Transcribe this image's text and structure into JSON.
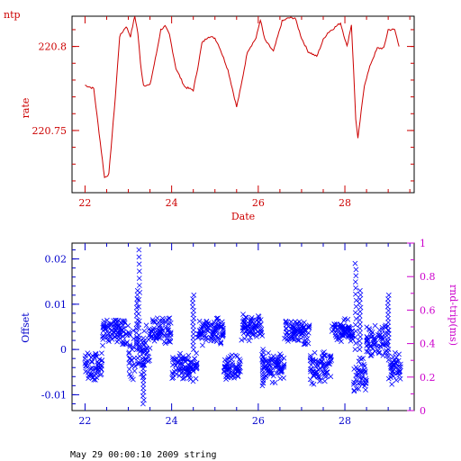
{
  "corner_label": "ntp",
  "footer_text": "May 29 00:00:10 2009 string",
  "colors": {
    "top": "#cc0000",
    "offset": "#0000cc",
    "rtt": "#cc00cc",
    "frame": "#000000"
  },
  "chart_data": [
    {
      "type": "line",
      "xlabel": "Date",
      "ylabel": "rate",
      "xlim": [
        21.7,
        29.6
      ],
      "ylim": [
        220.713,
        220.818
      ],
      "x_ticks": [
        22,
        24,
        26,
        28
      ],
      "y_ticks": [
        220.75,
        220.8
      ],
      "x_ticks_minor": [
        22.5,
        23,
        23.5,
        24.5,
        25,
        25.5,
        26.5,
        27,
        27.5,
        28.5,
        29,
        29.5
      ],
      "y_tick_labels": [
        "220.75",
        "220.8"
      ],
      "x_tick_labels": [
        "22",
        "24",
        "26",
        "28"
      ],
      "grid": false,
      "series": [
        {
          "x": [
            22.0,
            22.2,
            22.45,
            22.55,
            22.7,
            22.8,
            22.95,
            23.05,
            23.15,
            23.22,
            23.28,
            23.35,
            23.5,
            23.65,
            23.75,
            23.85,
            23.95,
            24.1,
            24.3,
            24.5,
            24.6,
            24.7,
            24.85,
            25.0,
            25.1,
            25.3,
            25.5,
            25.6,
            25.75,
            25.95,
            26.05,
            26.15,
            26.35,
            26.55,
            26.7,
            26.85,
            27.0,
            27.15,
            27.35,
            27.5,
            27.6,
            27.75,
            27.9,
            28.05,
            28.15,
            28.2,
            28.25,
            28.3,
            28.45,
            28.6,
            28.75,
            28.9,
            29.0,
            29.15,
            29.25
          ],
          "y": [
            220.777,
            220.775,
            220.722,
            220.724,
            220.77,
            220.806,
            220.812,
            220.806,
            220.818,
            220.808,
            220.79,
            220.777,
            220.777,
            220.796,
            220.81,
            220.812,
            220.807,
            220.787,
            220.776,
            220.774,
            220.787,
            220.802,
            220.806,
            220.805,
            220.8,
            220.786,
            220.764,
            220.776,
            220.797,
            220.805,
            220.816,
            220.804,
            220.797,
            220.815,
            220.817,
            220.817,
            220.805,
            220.797,
            220.794,
            220.804,
            220.808,
            220.811,
            220.814,
            220.8,
            220.813,
            220.786,
            220.757,
            220.745,
            220.777,
            220.79,
            220.799,
            220.799,
            220.81,
            220.81,
            220.8
          ]
        }
      ]
    },
    {
      "type": "scatter",
      "xlabel": "",
      "ylabel": "Offset",
      "ylabel_right": "rnd-trip(ms)",
      "xlim": [
        21.7,
        29.6
      ],
      "ylim": [
        -0.0135,
        0.0235
      ],
      "ylim_right": [
        0,
        1
      ],
      "x_ticks": [
        22,
        24,
        26,
        28
      ],
      "x_tick_labels": [
        "22",
        "24",
        "26",
        "28"
      ],
      "y_ticks": [
        -0.01,
        0,
        0.01,
        0.02
      ],
      "y_tick_labels": [
        "-0.01",
        "0",
        "0.01",
        "0.02"
      ],
      "y_ticks_right": [
        0,
        0.2,
        0.4,
        0.6,
        0.8,
        1
      ],
      "y_tick_labels_right": [
        "0",
        "0.2",
        "0.4",
        "0.6",
        "0.8",
        "1"
      ],
      "grid": false,
      "marker": "x",
      "segments": [
        {
          "x_start": 22.0,
          "x_end": 22.4,
          "center": -0.004,
          "spread": 0.005
        },
        {
          "x_start": 22.4,
          "x_end": 23.0,
          "center": 0.004,
          "spread": 0.004
        },
        {
          "x_start": 23.0,
          "x_end": 23.5,
          "center": -0.001,
          "spread": 0.009
        },
        {
          "x_start": 23.5,
          "x_end": 24.0,
          "center": 0.004,
          "spread": 0.004
        },
        {
          "x_start": 24.0,
          "x_end": 24.6,
          "center": -0.004,
          "spread": 0.005
        },
        {
          "x_start": 24.6,
          "x_end": 25.2,
          "center": 0.004,
          "spread": 0.004
        },
        {
          "x_start": 25.2,
          "x_end": 25.6,
          "center": -0.004,
          "spread": 0.004
        },
        {
          "x_start": 25.6,
          "x_end": 26.1,
          "center": 0.005,
          "spread": 0.004
        },
        {
          "x_start": 26.1,
          "x_end": 26.6,
          "center": -0.004,
          "spread": 0.005
        },
        {
          "x_start": 26.6,
          "x_end": 27.2,
          "center": 0.004,
          "spread": 0.004
        },
        {
          "x_start": 27.2,
          "x_end": 27.7,
          "center": -0.004,
          "spread": 0.005
        },
        {
          "x_start": 27.7,
          "x_end": 28.2,
          "center": 0.004,
          "spread": 0.004
        },
        {
          "x_start": 28.2,
          "x_end": 28.5,
          "center": -0.006,
          "spread": 0.006
        },
        {
          "x_start": 28.5,
          "x_end": 29.0,
          "center": 0.002,
          "spread": 0.005
        },
        {
          "x_start": 29.0,
          "x_end": 29.3,
          "center": -0.004,
          "spread": 0.005
        }
      ],
      "spikes": [
        {
          "x": 23.25,
          "y": 0.022
        },
        {
          "x": 23.2,
          "y": 0.013
        },
        {
          "x": 24.5,
          "y": 0.012
        },
        {
          "x": 28.25,
          "y": 0.019
        },
        {
          "x": 28.35,
          "y": 0.013
        },
        {
          "x": 29.0,
          "y": 0.012
        },
        {
          "x": 23.35,
          "y": -0.012
        },
        {
          "x": 26.1,
          "y": -0.008
        }
      ]
    }
  ]
}
